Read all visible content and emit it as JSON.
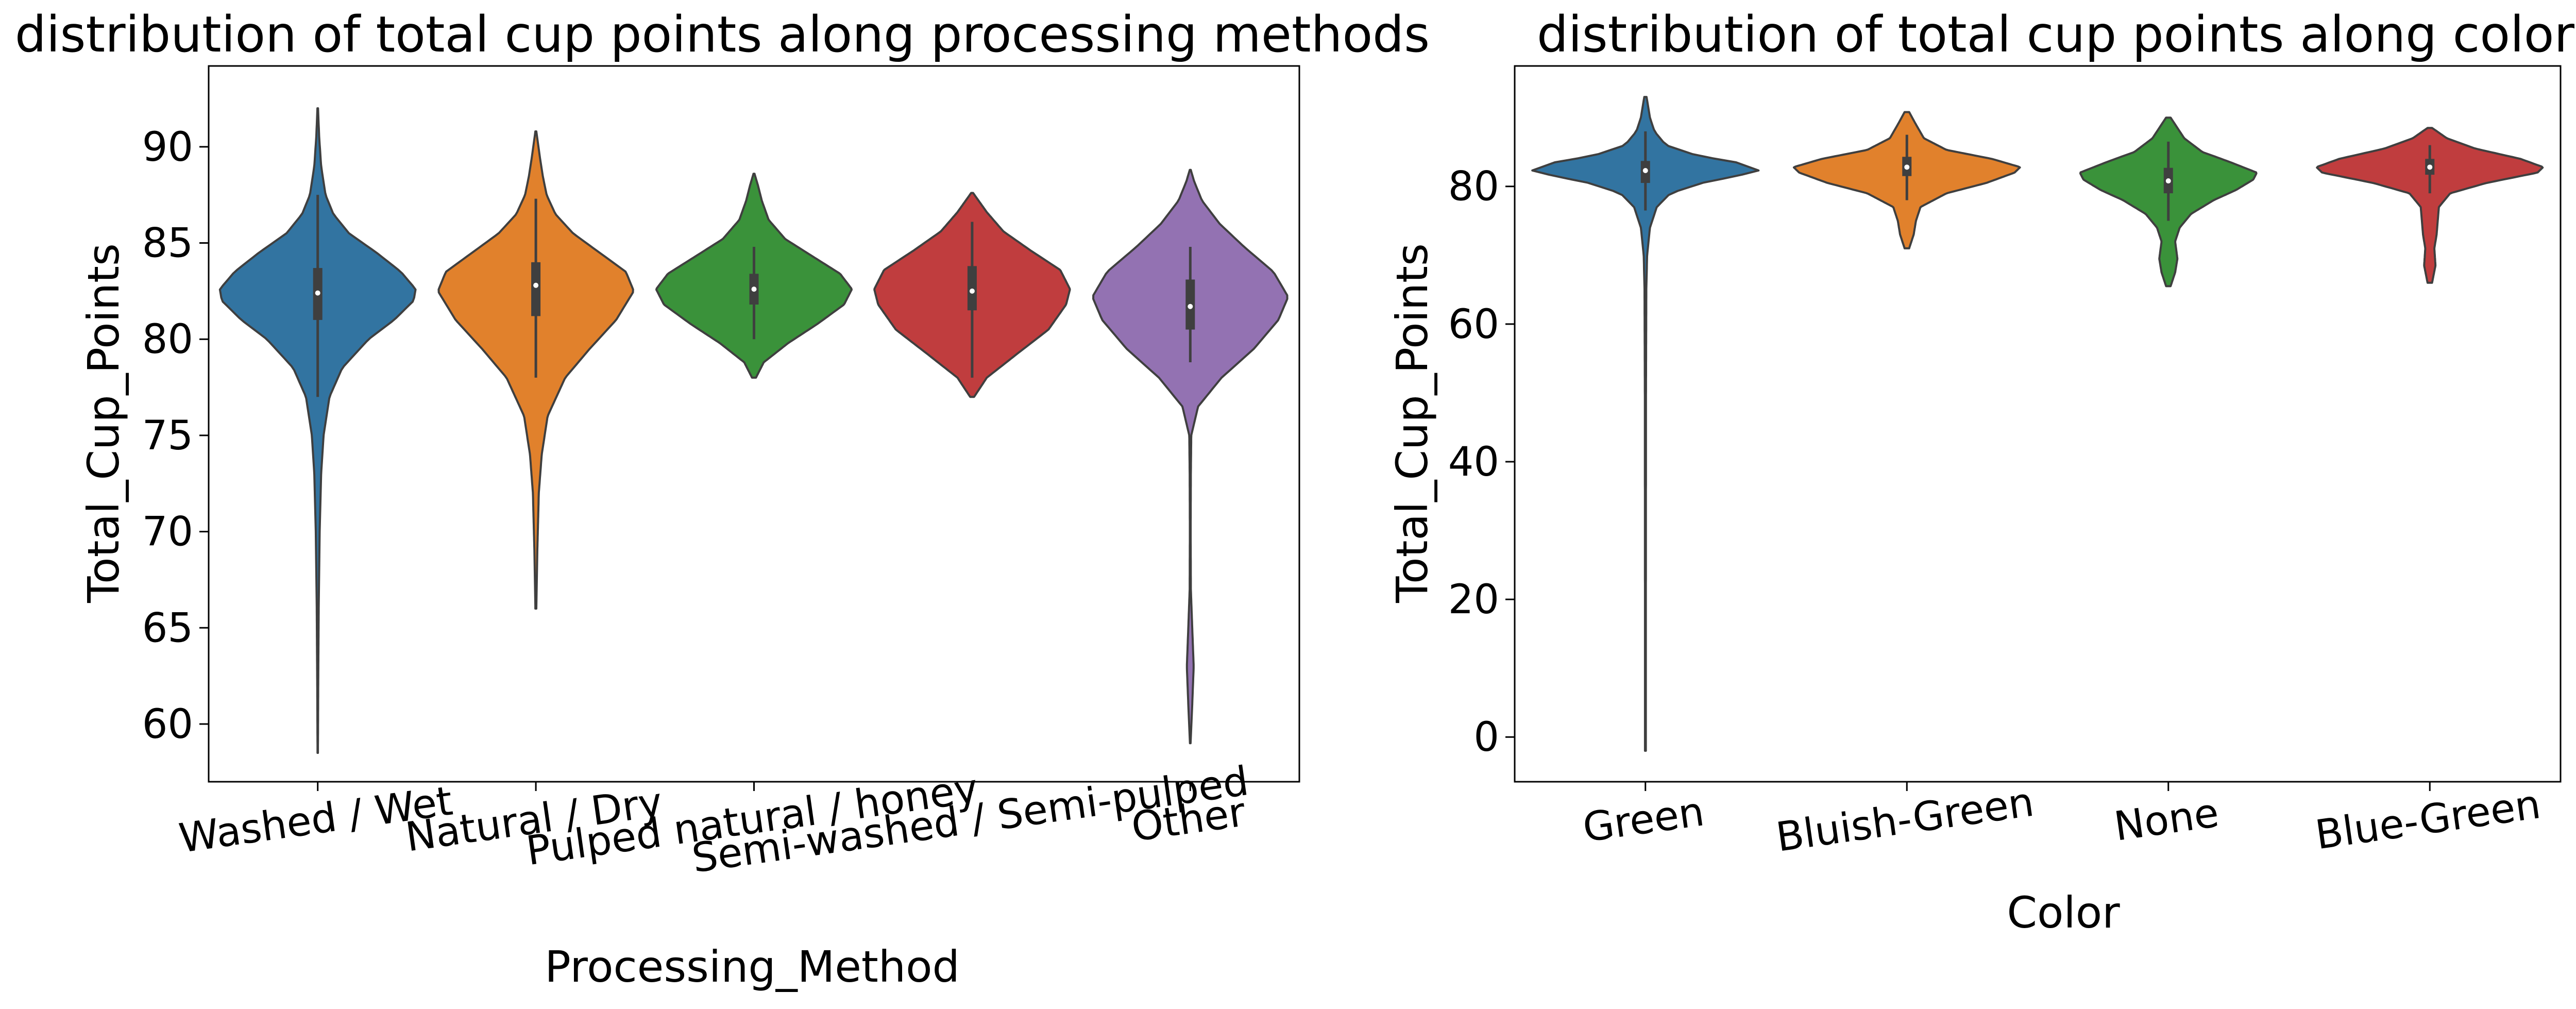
{
  "chart_data": [
    {
      "type": "violin",
      "title": "distribution of total cup points along processing methods",
      "xlabel": "Processing_Method",
      "ylabel": "Total_Cup_Points",
      "ylim": [
        57,
        94.2
      ],
      "yticks": [
        60,
        65,
        70,
        75,
        80,
        85,
        90
      ],
      "x_tick_rotation_deg": -8,
      "grid": false,
      "categories": [
        "Washed / Wet",
        "Natural / Dry",
        "Pulped natural / honey",
        "Semi-washed / Semi-pulped",
        "Other"
      ],
      "colors": [
        "#3274a1",
        "#e1812c",
        "#3a923a",
        "#c03d3e",
        "#9372b2"
      ],
      "violins": [
        {
          "name": "Washed / Wet",
          "min": 58.5,
          "max": 92.0,
          "q1": 81.0,
          "median": 82.4,
          "q3": 83.7,
          "whisker_low": 77.0,
          "whisker_high": 87.5,
          "profile": [
            [
              58.5,
              0.002
            ],
            [
              62,
              0.005
            ],
            [
              66,
              0.01
            ],
            [
              70,
              0.02
            ],
            [
              73,
              0.035
            ],
            [
              75,
              0.06
            ],
            [
              77,
              0.12
            ],
            [
              78.5,
              0.25
            ],
            [
              80,
              0.52
            ],
            [
              81,
              0.78
            ],
            [
              82,
              0.98
            ],
            [
              82.6,
              1.0
            ],
            [
              83.5,
              0.85
            ],
            [
              84.5,
              0.6
            ],
            [
              85.5,
              0.32
            ],
            [
              86.5,
              0.16
            ],
            [
              87.5,
              0.08
            ],
            [
              89,
              0.035
            ],
            [
              90.5,
              0.015
            ],
            [
              92,
              0.003
            ]
          ]
        },
        {
          "name": "Natural / Dry",
          "min": 66.0,
          "max": 90.8,
          "q1": 81.2,
          "median": 82.8,
          "q3": 84.0,
          "whisker_low": 78.0,
          "whisker_high": 87.3,
          "profile": [
            [
              66,
              0.005
            ],
            [
              69,
              0.015
            ],
            [
              72,
              0.03
            ],
            [
              74,
              0.06
            ],
            [
              76,
              0.12
            ],
            [
              78,
              0.3
            ],
            [
              79.5,
              0.55
            ],
            [
              81,
              0.82
            ],
            [
              82.5,
              1.0
            ],
            [
              83.5,
              0.92
            ],
            [
              84.5,
              0.65
            ],
            [
              85.5,
              0.38
            ],
            [
              86.5,
              0.2
            ],
            [
              87.5,
              0.11
            ],
            [
              88.5,
              0.07
            ],
            [
              89.5,
              0.04
            ],
            [
              90.8,
              0.005
            ]
          ]
        },
        {
          "name": "Pulped natural / honey",
          "min": 78.0,
          "max": 88.6,
          "q1": 81.8,
          "median": 82.6,
          "q3": 83.4,
          "whisker_low": 80.0,
          "whisker_high": 84.8,
          "profile": [
            [
              78,
              0.02
            ],
            [
              78.8,
              0.1
            ],
            [
              79.8,
              0.35
            ],
            [
              80.8,
              0.65
            ],
            [
              81.8,
              0.92
            ],
            [
              82.6,
              1.0
            ],
            [
              83.4,
              0.88
            ],
            [
              84.3,
              0.6
            ],
            [
              85.2,
              0.32
            ],
            [
              86.2,
              0.15
            ],
            [
              87.2,
              0.08
            ],
            [
              88,
              0.04
            ],
            [
              88.6,
              0.005
            ]
          ]
        },
        {
          "name": "Semi-washed / Semi-pulped",
          "min": 77.0,
          "max": 87.6,
          "q1": 81.5,
          "median": 82.5,
          "q3": 83.8,
          "whisker_low": 78.0,
          "whisker_high": 86.1,
          "profile": [
            [
              77,
              0.02
            ],
            [
              78,
              0.15
            ],
            [
              79.2,
              0.45
            ],
            [
              80.5,
              0.78
            ],
            [
              81.8,
              0.96
            ],
            [
              82.6,
              1.0
            ],
            [
              83.6,
              0.9
            ],
            [
              84.6,
              0.6
            ],
            [
              85.6,
              0.32
            ],
            [
              86.6,
              0.15
            ],
            [
              87.6,
              0.01
            ]
          ]
        },
        {
          "name": "Other",
          "min": 59.0,
          "max": 88.8,
          "q1": 80.5,
          "median": 81.7,
          "q3": 83.1,
          "whisker_low": 78.8,
          "whisker_high": 84.8,
          "profile": [
            [
              59,
              0.003
            ],
            [
              61,
              0.02
            ],
            [
              63,
              0.035
            ],
            [
              65,
              0.02
            ],
            [
              67,
              0.006
            ],
            [
              70,
              0.004
            ],
            [
              73,
              0.006
            ],
            [
              75,
              0.01
            ],
            [
              76.5,
              0.08
            ],
            [
              78,
              0.32
            ],
            [
              79.5,
              0.65
            ],
            [
              81,
              0.9
            ],
            [
              82.2,
              1.0
            ],
            [
              83.5,
              0.85
            ],
            [
              84.8,
              0.55
            ],
            [
              86,
              0.3
            ],
            [
              87.2,
              0.12
            ],
            [
              88.2,
              0.04
            ],
            [
              88.8,
              0.005
            ]
          ]
        }
      ]
    },
    {
      "type": "violin",
      "title": "distribution of total cup points along colors",
      "xlabel": "Color",
      "ylabel": "Total_Cup_Points",
      "ylim": [
        -6.5,
        97.5
      ],
      "yticks": [
        0,
        20,
        40,
        60,
        80
      ],
      "x_tick_rotation_deg": -8,
      "grid": false,
      "categories": [
        "Green",
        "Bluish-Green",
        "None",
        "Blue-Green"
      ],
      "colors": [
        "#3274a1",
        "#e1812c",
        "#3a923a",
        "#c03d3e"
      ],
      "violins": [
        {
          "name": "Green",
          "min": -2.0,
          "max": 93.0,
          "q1": 80.5,
          "median": 82.3,
          "q3": 83.7,
          "whisker_low": 76.5,
          "whisker_high": 88.0,
          "profile": [
            [
              -2,
              0.004
            ],
            [
              20,
              0.004
            ],
            [
              50,
              0.005
            ],
            [
              65,
              0.008
            ],
            [
              70,
              0.015
            ],
            [
              74,
              0.04
            ],
            [
              77,
              0.1
            ],
            [
              79,
              0.22
            ],
            [
              80.5,
              0.5
            ],
            [
              81.5,
              0.8
            ],
            [
              82.3,
              1.0
            ],
            [
              83.5,
              0.8
            ],
            [
              84.5,
              0.45
            ],
            [
              86,
              0.18
            ],
            [
              88,
              0.08
            ],
            [
              90,
              0.04
            ],
            [
              93,
              0.01
            ]
          ]
        },
        {
          "name": "Bluish-Green",
          "min": 71.0,
          "max": 90.8,
          "q1": 81.5,
          "median": 82.8,
          "q3": 84.3,
          "whisker_low": 78.0,
          "whisker_high": 87.5,
          "profile": [
            [
              71,
              0.02
            ],
            [
              73,
              0.06
            ],
            [
              75,
              0.08
            ],
            [
              77,
              0.12
            ],
            [
              79,
              0.35
            ],
            [
              80.5,
              0.7
            ],
            [
              82,
              0.95
            ],
            [
              82.8,
              1.0
            ],
            [
              84,
              0.75
            ],
            [
              85.3,
              0.35
            ],
            [
              87,
              0.15
            ],
            [
              89,
              0.08
            ],
            [
              90.8,
              0.02
            ]
          ]
        },
        {
          "name": "None",
          "min": 65.5,
          "max": 90.0,
          "q1": 79.0,
          "median": 80.8,
          "q3": 82.7,
          "whisker_low": 75.0,
          "whisker_high": 86.5,
          "profile": [
            [
              65.5,
              0.02
            ],
            [
              67.5,
              0.06
            ],
            [
              69.5,
              0.08
            ],
            [
              72,
              0.06
            ],
            [
              74,
              0.1
            ],
            [
              76,
              0.2
            ],
            [
              78,
              0.4
            ],
            [
              79.5,
              0.6
            ],
            [
              81,
              0.75
            ],
            [
              82,
              0.78
            ],
            [
              83.5,
              0.55
            ],
            [
              85,
              0.3
            ],
            [
              87,
              0.14
            ],
            [
              89,
              0.06
            ],
            [
              90,
              0.02
            ]
          ]
        },
        {
          "name": "Blue-Green",
          "min": 66.0,
          "max": 88.5,
          "q1": 81.7,
          "median": 82.8,
          "q3": 84.0,
          "whisker_low": 79.0,
          "whisker_high": 86.0,
          "profile": [
            [
              66,
              0.02
            ],
            [
              68.5,
              0.05
            ],
            [
              71,
              0.04
            ],
            [
              73,
              0.06
            ],
            [
              75,
              0.07
            ],
            [
              77,
              0.08
            ],
            [
              79,
              0.18
            ],
            [
              80.5,
              0.5
            ],
            [
              82,
              0.95
            ],
            [
              82.8,
              1.0
            ],
            [
              84,
              0.8
            ],
            [
              85.5,
              0.4
            ],
            [
              87,
              0.15
            ],
            [
              88.5,
              0.02
            ]
          ]
        }
      ]
    }
  ]
}
